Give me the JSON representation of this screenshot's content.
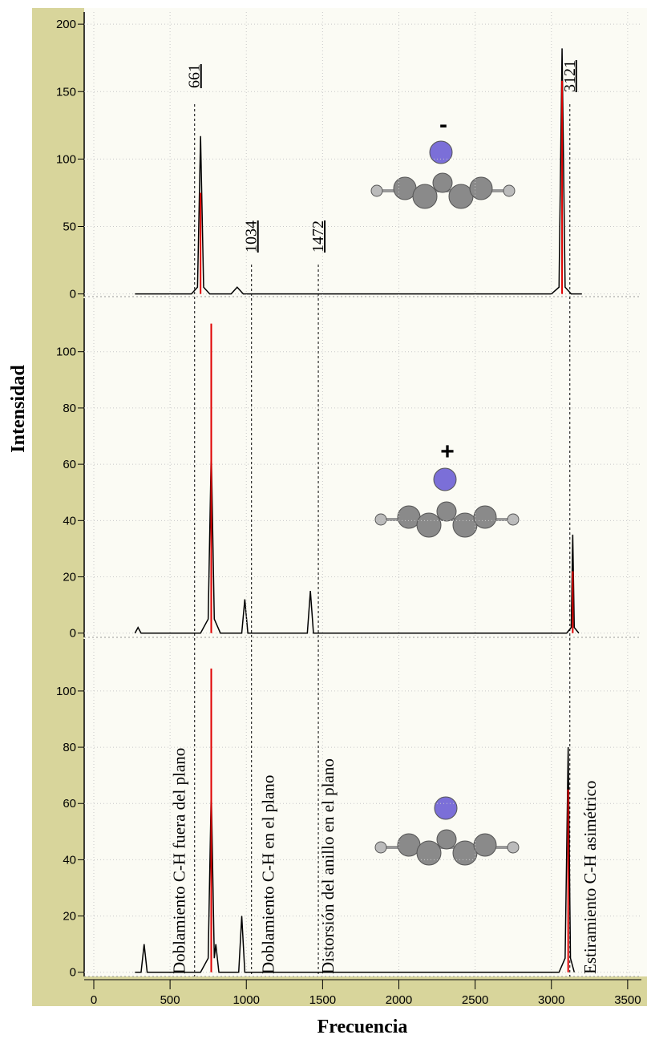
{
  "chart_data": [
    {
      "type": "line",
      "xlim": [
        -63,
        3590
      ],
      "ylim": [
        -2,
        209
      ],
      "yticks": [
        0,
        50,
        100,
        150,
        200
      ],
      "grid": true,
      "charge": "-",
      "reference_lines": {
        "x": [
          661,
          1034,
          1472,
          3121
        ],
        "labels": [
          "661",
          "1034",
          "1472",
          "3121"
        ]
      },
      "series": [
        {
          "color": "#000000",
          "x": [
            270,
            640,
            680,
            700,
            720,
            760,
            900,
            940,
            980,
            1100,
            3000,
            3050,
            3070,
            3090,
            3130,
            3200
          ],
          "values": [
            0,
            0,
            5,
            117,
            5,
            0,
            0,
            5,
            0,
            0,
            0,
            5,
            182,
            5,
            0,
            0
          ]
        },
        {
          "color": "#e00000",
          "style": "sticks",
          "x": [
            700,
            3070
          ],
          "values": [
            75,
            158
          ]
        }
      ]
    },
    {
      "type": "line",
      "xlim": [
        -63,
        3590
      ],
      "ylim": [
        -1.5,
        119
      ],
      "yticks": [
        0,
        20,
        40,
        60,
        80,
        100
      ],
      "grid": true,
      "charge": "+",
      "ylabel": "Intensidad",
      "series": [
        {
          "color": "#000000",
          "x": [
            270,
            290,
            310,
            700,
            750,
            770,
            790,
            830,
            970,
            990,
            1010,
            1400,
            1420,
            1440,
            3100,
            3130,
            3140,
            3150,
            3180
          ],
          "values": [
            0,
            2,
            0,
            0,
            5,
            65,
            5,
            0,
            0,
            12,
            0,
            0,
            15,
            0,
            0,
            2,
            35,
            2,
            0
          ]
        },
        {
          "color": "#e00000",
          "style": "sticks",
          "x": [
            770,
            3140
          ],
          "values": [
            110,
            22
          ]
        }
      ]
    },
    {
      "type": "line",
      "xlim": [
        -63,
        3590
      ],
      "ylim": [
        -1.5,
        118.5
      ],
      "yticks": [
        0,
        20,
        40,
        60,
        80,
        100
      ],
      "grid": true,
      "xticks": [
        0,
        500,
        1000,
        1500,
        2000,
        2500,
        3000,
        3500
      ],
      "xlabel": "Frecuencia",
      "annotations": [
        "Doblamiento C-H fuera del plano",
        "Doblamiento C-H en el plano",
        "Distorsión del anillo en el plano",
        "Estiramiento C-H asimétrico"
      ],
      "series": [
        {
          "color": "#000000",
          "x": [
            270,
            310,
            330,
            350,
            700,
            750,
            770,
            790,
            800,
            820,
            950,
            970,
            990,
            3050,
            3090,
            3110,
            3125,
            3150
          ],
          "values": [
            0,
            0,
            10,
            0,
            0,
            5,
            65,
            5,
            10,
            0,
            0,
            20,
            0,
            0,
            5,
            80,
            5,
            0
          ]
        },
        {
          "color": "#e00000",
          "style": "sticks",
          "x": [
            770,
            3110
          ],
          "values": [
            108,
            65
          ]
        }
      ]
    }
  ]
}
